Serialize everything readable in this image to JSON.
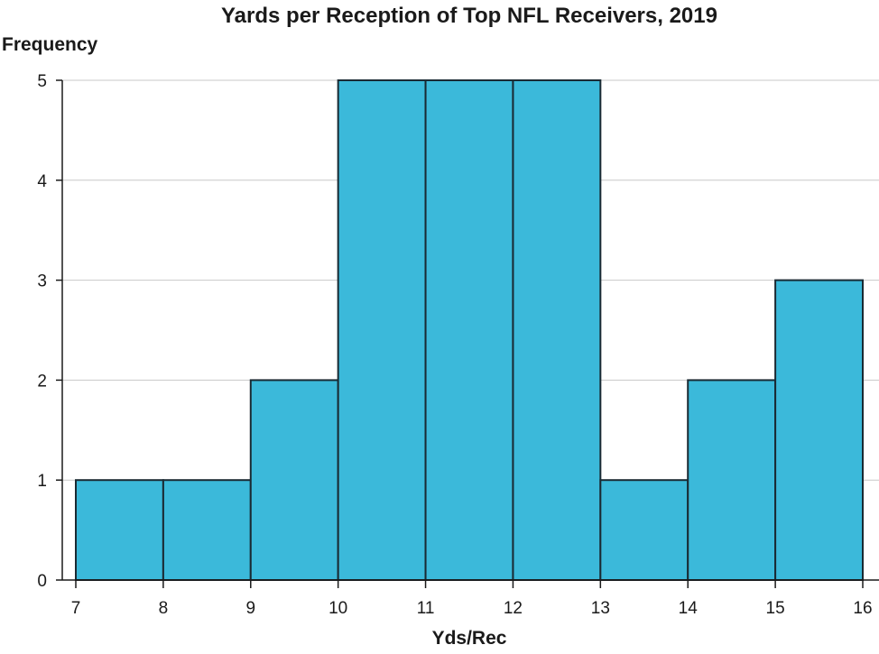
{
  "chart_data": {
    "type": "bar",
    "title": "Yards per Reception of Top NFL Receivers, 2019",
    "xlabel": "Yds/Rec",
    "ylabel": "Frequency",
    "bin_edges": [
      7,
      8,
      9,
      10,
      11,
      12,
      13,
      14,
      15,
      16
    ],
    "values": [
      1,
      1,
      2,
      5,
      5,
      5,
      1,
      2,
      3
    ],
    "xlim": [
      7,
      16
    ],
    "ylim": [
      0,
      5
    ],
    "x_ticks": [
      "7",
      "8",
      "9",
      "10",
      "11",
      "12",
      "13",
      "14",
      "15",
      "16"
    ],
    "y_ticks": [
      "0",
      "1",
      "2",
      "3",
      "4",
      "5"
    ],
    "grid": "horizontal",
    "bar_color": "#3bb9da",
    "bar_edge_color": "#1a2a33"
  }
}
